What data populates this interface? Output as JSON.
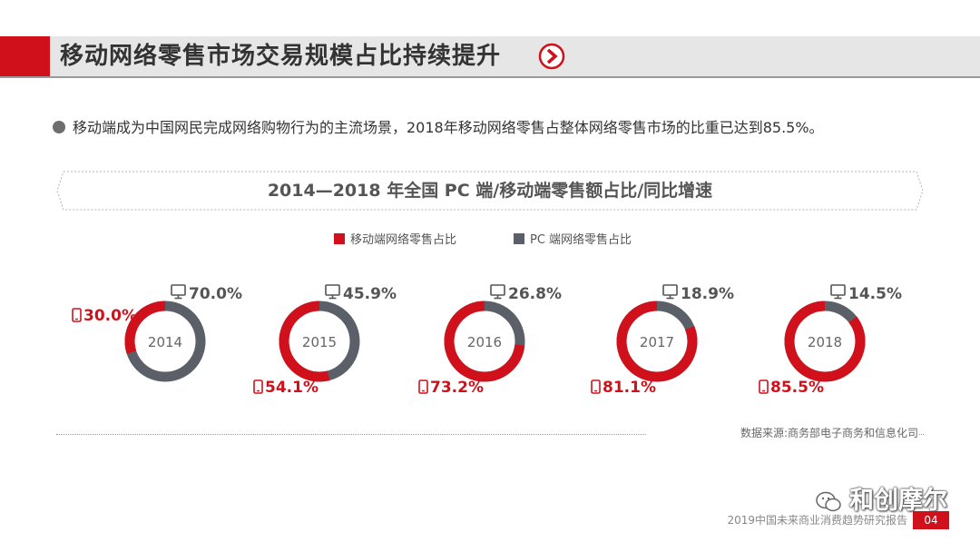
{
  "header": {
    "title": "移动网络零售市场交易规模占比持续提升",
    "next_icon": "chevron-right-circle-icon"
  },
  "bullet": {
    "text": "移动端成为中国网民完成网络购物行为的主流场景，2018年移动网络零售占整体网络零售市场的比重已达到85.5%。"
  },
  "chart_title": "2014—2018 年全国 PC 端/移动端零售额占比/同比增速",
  "legend": [
    {
      "label": "移动端网络零售占比",
      "color": "#d0111b"
    },
    {
      "label": "PC 端网络零售占比",
      "color": "#5b6068"
    }
  ],
  "chart_data": {
    "type": "pie",
    "variant": "donut-small-multiples",
    "title": "2014—2018 年全国 PC 端/移动端零售额占比/同比增速",
    "categories": [
      "2014",
      "2015",
      "2016",
      "2017",
      "2018"
    ],
    "series": [
      {
        "name": "移动端网络零售占比",
        "color": "#d0111b",
        "values": [
          30.0,
          54.1,
          73.2,
          81.1,
          85.5
        ],
        "labels": [
          "30.0%",
          "54.1%",
          "73.2%",
          "81.1%",
          "85.5%"
        ],
        "icon": "mobile-phone-icon"
      },
      {
        "name": "PC 端网络零售占比",
        "color": "#5b6068",
        "values": [
          70.0,
          45.9,
          26.8,
          18.9,
          14.5
        ],
        "labels": [
          "70.0%",
          "45.9%",
          "26.8%",
          "18.9%",
          "14.5%"
        ],
        "icon": "monitor-icon"
      }
    ],
    "unit": "%",
    "legend_position": "top"
  },
  "source": "数据来源:商务部电子商务和信息化司",
  "footer": {
    "report": "2019中国未来商业消费趋势研究报告",
    "page": "04"
  },
  "watermark": {
    "text": "和创摩尔",
    "icon": "wechat-icon"
  }
}
